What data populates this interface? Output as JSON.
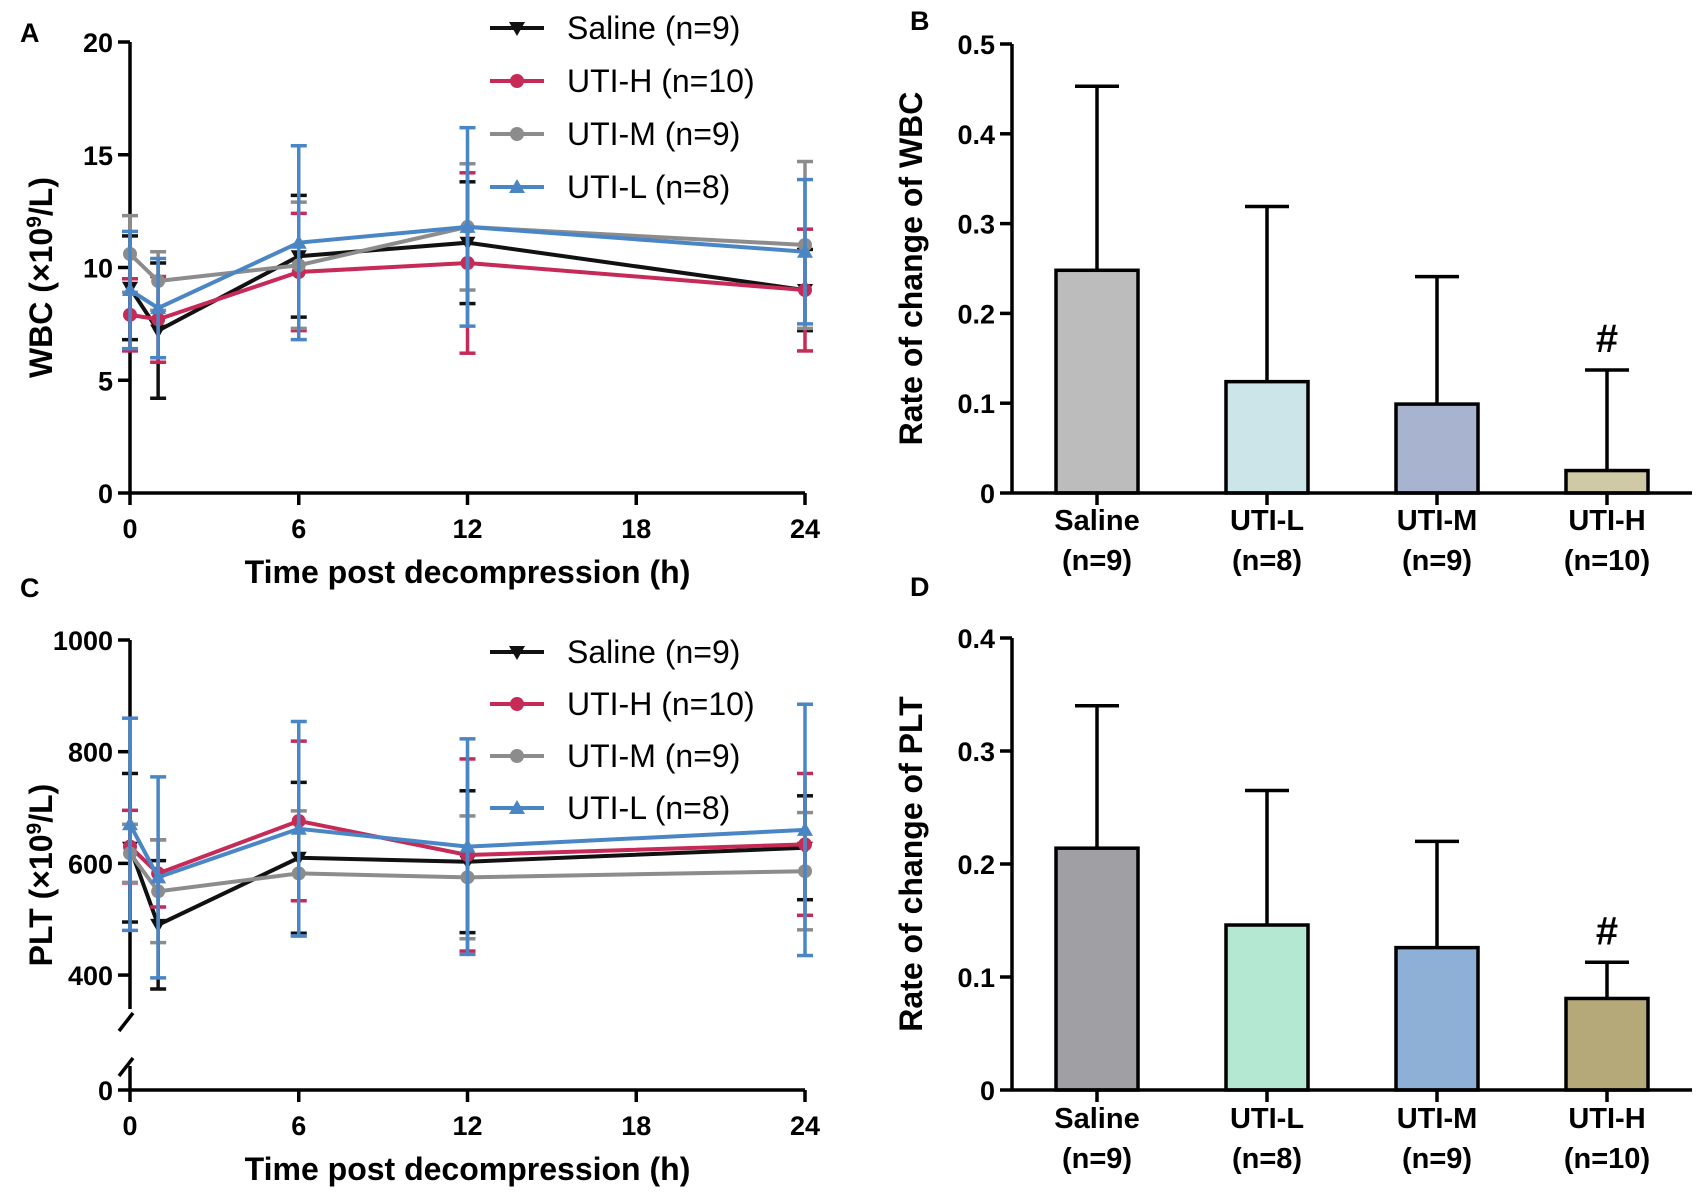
{
  "chart_data": [
    {
      "id": "A",
      "panel_label": "A",
      "type": "line",
      "ylabel_main": "WBC (×10",
      "ylabel_sup": "9",
      "ylabel_end": "/L)",
      "xlabel": "Time post decompression (h)",
      "xlim": [
        0,
        24
      ],
      "ylim": [
        0,
        20
      ],
      "xticks": [
        0,
        6,
        12,
        18,
        24
      ],
      "yticks": [
        0,
        5,
        10,
        15,
        20
      ],
      "x": [
        0,
        1,
        6,
        12,
        24
      ],
      "series": [
        {
          "name": "Saline (n=9)",
          "color": "#111111",
          "marker": "triangle-down",
          "values": [
            9.1,
            7.2,
            10.5,
            11.1,
            9.0
          ],
          "errors": [
            2.3,
            3.0,
            2.7,
            2.7,
            1.8
          ]
        },
        {
          "name": "UTI-H (n=10)",
          "color": "#c62a56",
          "marker": "circle",
          "values": [
            7.9,
            7.7,
            9.8,
            10.2,
            9.0
          ],
          "errors": [
            1.6,
            1.9,
            2.6,
            4.0,
            2.7
          ]
        },
        {
          "name": "UTI-M (n=9)",
          "color": "#8c8c8c",
          "marker": "circle",
          "values": [
            10.6,
            9.4,
            10.1,
            11.8,
            11.0
          ],
          "errors": [
            1.7,
            1.3,
            2.8,
            2.8,
            3.7
          ]
        },
        {
          "name": "UTI-L  (n=8)",
          "color": "#4a86c5",
          "marker": "triangle-up",
          "values": [
            9.0,
            8.2,
            11.1,
            11.8,
            10.7
          ],
          "errors": [
            2.6,
            2.2,
            4.3,
            4.4,
            3.2
          ]
        }
      ]
    },
    {
      "id": "B",
      "panel_label": "B",
      "type": "bar",
      "ylabel": "Rate of change of WBC",
      "ylim": [
        0,
        0.5
      ],
      "yticks": [
        "0",
        "0.1",
        "0.2",
        "0.3",
        "0.4",
        "0.5"
      ],
      "categories": [
        "Saline",
        "UTI-L",
        "UTI-M",
        "UTI-H"
      ],
      "category_n": [
        "(n=9)",
        "(n=8)",
        "(n=9)",
        "(n=10)"
      ],
      "values": [
        0.248,
        0.124,
        0.099,
        0.025
      ],
      "errors": [
        0.205,
        0.195,
        0.142,
        0.112
      ],
      "colors": [
        "#bcbcbc",
        "#cce5e8",
        "#a7b3cf",
        "#d0c9a6"
      ],
      "annotations": [
        "",
        "",
        "",
        "#"
      ]
    },
    {
      "id": "C",
      "panel_label": "C",
      "type": "line",
      "ylabel_main": "PLT (×10",
      "ylabel_sup": "9",
      "ylabel_end": "/L)",
      "xlabel": "Time post decompression (h)",
      "xlim": [
        0,
        24
      ],
      "ylim": [
        0,
        1000
      ],
      "axis_break": [
        0,
        350
      ],
      "xticks": [
        0,
        6,
        12,
        18,
        24
      ],
      "yticks": [
        0,
        400,
        600,
        800,
        1000
      ],
      "x": [
        0,
        1,
        6,
        12,
        24
      ],
      "series": [
        {
          "name": "Saline (n=9)",
          "color": "#111111",
          "marker": "triangle-down",
          "values": [
            628,
            490,
            610,
            603,
            628
          ],
          "errors": [
            133,
            115,
            135,
            127,
            93
          ]
        },
        {
          "name": "UTI-H (n=10)",
          "color": "#c62a56",
          "marker": "circle",
          "values": [
            630,
            582,
            676,
            615,
            634
          ],
          "errors": [
            65,
            60,
            143,
            172,
            127
          ]
        },
        {
          "name": "UTI-M (n=9)",
          "color": "#8c8c8c",
          "marker": "circle",
          "values": [
            618,
            550,
            582,
            575,
            586
          ],
          "errors": [
            52,
            92,
            112,
            110,
            105
          ]
        },
        {
          "name": "UTI-L  (n=8)",
          "color": "#4a86c5",
          "marker": "triangle-up",
          "values": [
            670,
            575,
            662,
            630,
            660
          ],
          "errors": [
            190,
            180,
            192,
            193,
            225
          ]
        }
      ]
    },
    {
      "id": "D",
      "panel_label": "D",
      "type": "bar",
      "ylabel": "Rate of change of PLT",
      "ylim": [
        0,
        0.4
      ],
      "yticks": [
        "0",
        "0.1",
        "0.2",
        "0.3",
        "0.4"
      ],
      "categories": [
        "Saline",
        "UTI-L",
        "UTI-M",
        "UTI-H"
      ],
      "category_n": [
        "(n=9)",
        "(n=8)",
        "(n=9)",
        "(n=10)"
      ],
      "values": [
        0.214,
        0.146,
        0.126,
        0.081
      ],
      "errors": [
        0.126,
        0.119,
        0.094,
        0.032
      ],
      "colors": [
        "#a0a0a4",
        "#b4e8d3",
        "#8eafd6",
        "#b5a979"
      ],
      "annotations": [
        "",
        "",
        "",
        "#"
      ]
    }
  ]
}
